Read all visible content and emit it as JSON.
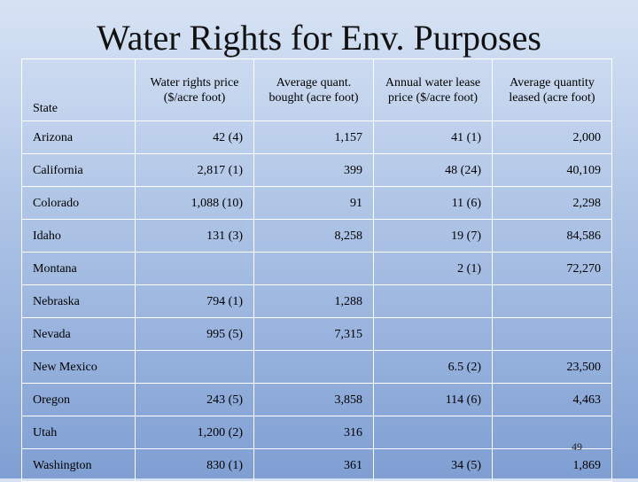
{
  "slide": {
    "title": "Water Rights for Env. Purposes",
    "slide_number": "49"
  },
  "table": {
    "headers": [
      "State",
      "Water rights price ($/acre foot)",
      "Average quant. bought (acre foot)",
      "Annual water lease price ($/acre foot)",
      "Average quantity leased (acre foot)"
    ],
    "rows": [
      [
        "Arizona",
        "42 (4)",
        "1,157",
        "41 (1)",
        "2,000"
      ],
      [
        "California",
        "2,817 (1)",
        "399",
        "48 (24)",
        "40,109"
      ],
      [
        "Colorado",
        "1,088 (10)",
        "91",
        "11 (6)",
        "2,298"
      ],
      [
        "Idaho",
        "131 (3)",
        "8,258",
        "19 (7)",
        "84,586"
      ],
      [
        "Montana",
        "",
        "",
        "2 (1)",
        "72,270"
      ],
      [
        "Nebraska",
        "794 (1)",
        "1,288",
        "",
        ""
      ],
      [
        "Nevada",
        "995 (5)",
        "7,315",
        "",
        ""
      ],
      [
        "New Mexico",
        "",
        "",
        "6.5 (2)",
        "23,500"
      ],
      [
        "Oregon",
        "243 (5)",
        "3,858",
        "114 (6)",
        "4,463"
      ],
      [
        "Utah",
        "1,200 (2)",
        "316",
        "",
        ""
      ],
      [
        "Washington",
        "830 (1)",
        "361",
        "34 (5)",
        "1,869"
      ]
    ]
  }
}
